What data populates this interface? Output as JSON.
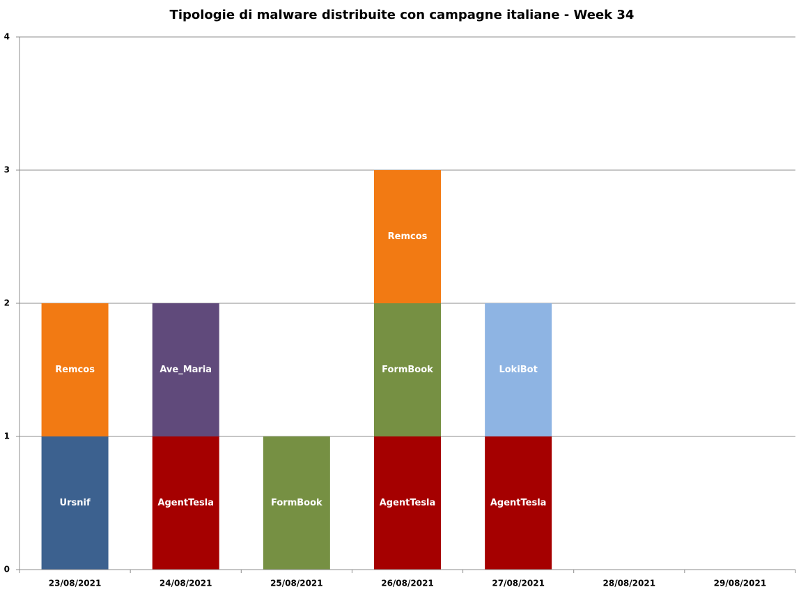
{
  "chart_data": {
    "type": "stacked_bar",
    "title": "Tipologie di malware distribuite con campagne italiane - Week 34",
    "categories": [
      "23/08/2021",
      "24/08/2021",
      "25/08/2021",
      "26/08/2021",
      "27/08/2021",
      "28/08/2021",
      "29/08/2021"
    ],
    "series": [
      {
        "name": "Ursnif",
        "color": "#3c618f",
        "values": [
          1,
          null,
          null,
          null,
          null,
          null,
          null
        ]
      },
      {
        "name": "AgentTesla",
        "color": "#a50000",
        "values": [
          null,
          1,
          null,
          1,
          1,
          null,
          null
        ]
      },
      {
        "name": "FormBook",
        "color": "#769043",
        "values": [
          null,
          null,
          1,
          1,
          null,
          null,
          null
        ]
      },
      {
        "name": "Remcos",
        "color": "#f27a13",
        "values": [
          1,
          null,
          null,
          1,
          null,
          null,
          null
        ]
      },
      {
        "name": "Ave_Maria",
        "color": "#604a7b",
        "values": [
          null,
          1,
          null,
          null,
          null,
          null,
          null
        ]
      },
      {
        "name": "LokiBot",
        "color": "#8eb4e3",
        "values": [
          null,
          null,
          null,
          null,
          1,
          null,
          null
        ]
      }
    ],
    "ylim": [
      0,
      4
    ],
    "yticks": [
      0,
      1,
      2,
      3,
      4
    ],
    "grid": true
  }
}
